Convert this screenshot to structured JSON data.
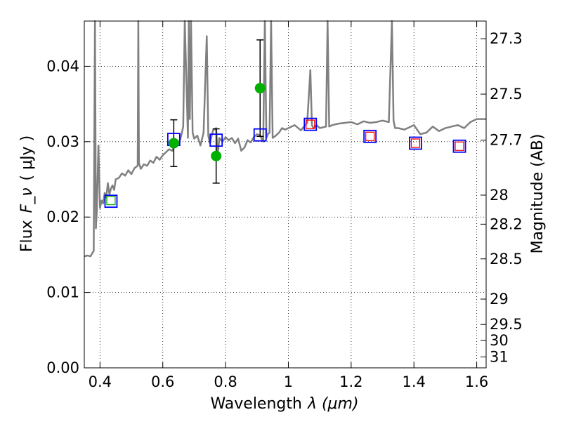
{
  "chart_data": {
    "type": "line",
    "title": "",
    "xlabel": "Wavelength",
    "xlabel_symbol": "λ (μm)",
    "ylabel": "Flux",
    "ylabel_symbol": "F_ν",
    "ylabel_unit": "( μJy )",
    "ylabel_right": "Magnitude (AB)",
    "xlim": [
      0.35,
      1.63
    ],
    "ylim": [
      0.0,
      0.046
    ],
    "grid": true,
    "grid_style": "dotted",
    "x_ticks": [
      0.4,
      0.6,
      0.8,
      1.0,
      1.2,
      1.4,
      1.6
    ],
    "x_tick_labels": [
      "0.4",
      "0.6",
      "0.8",
      "1",
      "1.2",
      "1.4",
      "1.6"
    ],
    "y_ticks": [
      0.0,
      0.01,
      0.02,
      0.03,
      0.04
    ],
    "y_tick_labels": [
      "0.00",
      "0.01",
      "0.02",
      "0.03",
      "0.04"
    ],
    "mag_ticks": [
      27.3,
      27.5,
      27.7,
      28,
      28.2,
      28.5,
      29,
      29.5,
      30,
      31
    ],
    "mag_tick_labels": [
      "27.3",
      "27.5",
      "27.7",
      "28",
      "28.2",
      "28.5",
      "29",
      "29.5",
      "30",
      "31"
    ],
    "series": [
      {
        "kind": "spectrum",
        "color": "#808080",
        "x": [
          0.35,
          0.36,
          0.37,
          0.375,
          0.38,
          0.384,
          0.387,
          0.39,
          0.395,
          0.4,
          0.405,
          0.41,
          0.415,
          0.42,
          0.425,
          0.43,
          0.435,
          0.44,
          0.445,
          0.45,
          0.46,
          0.47,
          0.48,
          0.49,
          0.5,
          0.51,
          0.52,
          0.522,
          0.524,
          0.53,
          0.54,
          0.55,
          0.56,
          0.57,
          0.58,
          0.59,
          0.6,
          0.61,
          0.62,
          0.63,
          0.64,
          0.65,
          0.655,
          0.66,
          0.665,
          0.67,
          0.68,
          0.683,
          0.686,
          0.69,
          0.695,
          0.7,
          0.71,
          0.72,
          0.73,
          0.74,
          0.745,
          0.75,
          0.76,
          0.77,
          0.775,
          0.78,
          0.79,
          0.8,
          0.81,
          0.82,
          0.83,
          0.84,
          0.85,
          0.86,
          0.87,
          0.88,
          0.89,
          0.9,
          0.91,
          0.92,
          0.925,
          0.93,
          0.935,
          0.94,
          0.945,
          0.95,
          0.96,
          0.97,
          0.98,
          0.99,
          1.0,
          1.02,
          1.04,
          1.06,
          1.07,
          1.075,
          1.08,
          1.09,
          1.1,
          1.12,
          1.125,
          1.13,
          1.14,
          1.16,
          1.18,
          1.2,
          1.22,
          1.24,
          1.26,
          1.28,
          1.3,
          1.32,
          1.33,
          1.335,
          1.34,
          1.35,
          1.37,
          1.4,
          1.42,
          1.44,
          1.46,
          1.48,
          1.5,
          1.52,
          1.54,
          1.56,
          1.58,
          1.6,
          1.63
        ],
        "y": [
          0.0148,
          0.0149,
          0.0148,
          0.0152,
          0.0155,
          0.046,
          0.0185,
          0.021,
          0.0295,
          0.0212,
          0.0222,
          0.0218,
          0.0232,
          0.0226,
          0.0245,
          0.023,
          0.0238,
          0.0242,
          0.0236,
          0.025,
          0.0252,
          0.0258,
          0.0255,
          0.0262,
          0.0257,
          0.0265,
          0.0268,
          0.046,
          0.0272,
          0.0264,
          0.027,
          0.0268,
          0.0275,
          0.0272,
          0.028,
          0.0276,
          0.0282,
          0.0286,
          0.029,
          0.0288,
          0.0297,
          0.0298,
          0.0302,
          0.031,
          0.032,
          0.046,
          0.0305,
          0.046,
          0.033,
          0.046,
          0.0312,
          0.0304,
          0.0308,
          0.0295,
          0.0312,
          0.044,
          0.0308,
          0.0298,
          0.0315,
          0.0318,
          0.028,
          0.0305,
          0.03,
          0.0306,
          0.0302,
          0.0305,
          0.0298,
          0.0304,
          0.0288,
          0.0292,
          0.0302,
          0.0299,
          0.0306,
          0.031,
          0.0308,
          0.03,
          0.046,
          0.0305,
          0.031,
          0.0312,
          0.046,
          0.0305,
          0.0308,
          0.0312,
          0.0318,
          0.0316,
          0.0318,
          0.0322,
          0.0315,
          0.0325,
          0.0395,
          0.0322,
          0.0318,
          0.0322,
          0.0318,
          0.032,
          0.046,
          0.032,
          0.0322,
          0.0324,
          0.0325,
          0.0326,
          0.0323,
          0.0327,
          0.0325,
          0.0326,
          0.0328,
          0.0326,
          0.046,
          0.0328,
          0.0318,
          0.0318,
          0.0316,
          0.0322,
          0.031,
          0.0312,
          0.032,
          0.0314,
          0.0318,
          0.032,
          0.0322,
          0.0318,
          0.0326,
          0.033,
          0.033
        ]
      },
      {
        "kind": "observed",
        "color": "#00b000",
        "x": [
          0.435,
          0.635,
          0.77,
          0.91
        ],
        "y": [
          0.0222,
          0.0298,
          0.0281,
          0.0371
        ],
        "yerr": [
          null,
          0.0031,
          0.0036,
          0.0064
        ],
        "marker": [
          "square-open",
          "circle",
          "circle",
          "circle"
        ]
      },
      {
        "kind": "model-photometry-blue",
        "color": "#0000ff",
        "x": [
          0.435,
          0.635,
          0.77,
          0.91,
          1.07,
          1.26,
          1.405,
          1.545
        ],
        "y": [
          0.0221,
          0.0303,
          0.0302,
          0.0309,
          0.0323,
          0.0307,
          0.0298,
          0.0294
        ]
      },
      {
        "kind": "model-photometry-red",
        "color": "#ff0000",
        "x": [
          1.07,
          1.26,
          1.405,
          1.545
        ],
        "y": [
          0.0323,
          0.0307,
          0.0298,
          0.0294
        ]
      }
    ]
  }
}
